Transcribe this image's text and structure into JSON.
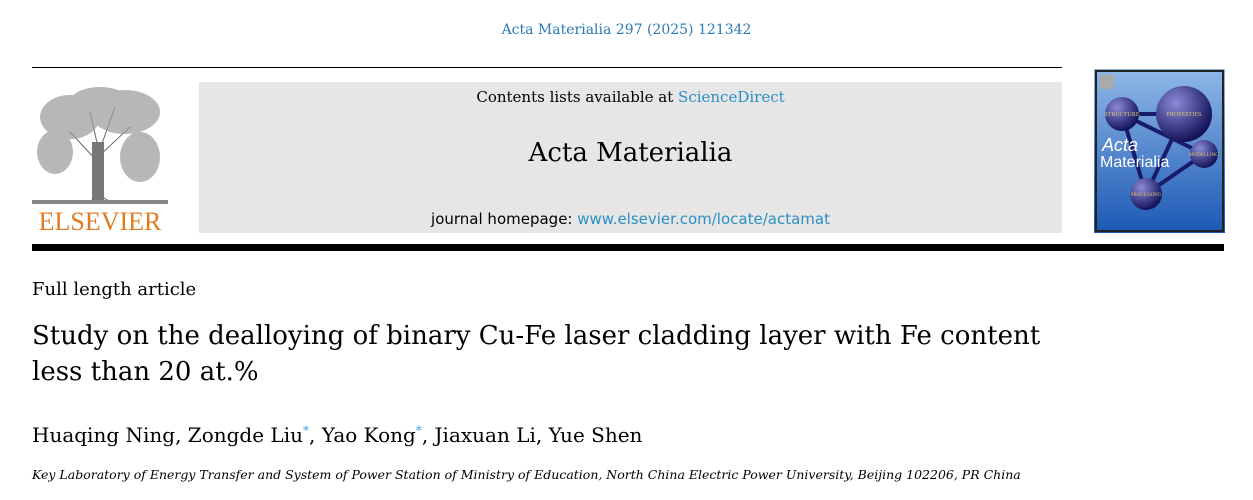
{
  "header": {
    "citation": "Acta Materialia 297 (2025) 121342",
    "contents_prefix": "Contents lists available at ",
    "contents_link": "ScienceDirect",
    "journal_title": "Acta Materialia",
    "homepage_prefix": "journal homepage: ",
    "homepage_link": "www.elsevier.com/locate/actamat",
    "publisher_logo_text": "ELSEVIER",
    "cover": {
      "title_line1": "Acta",
      "title_line2": "Materialia",
      "spheres": [
        "STRUCTURE",
        "PROPERTIES",
        "MODELLING",
        "PROCESSING"
      ],
      "background_color": "#2e6fc0"
    }
  },
  "article": {
    "type": "Full length article",
    "title": "Study on the dealloying of binary Cu-Fe laser cladding layer with Fe content less than 20 at.%",
    "authors": [
      {
        "name": "Huaqing Ning",
        "mark": ""
      },
      {
        "name": "Zongde Liu",
        "mark": "*"
      },
      {
        "name": "Yao Kong",
        "mark": "*"
      },
      {
        "name": "Jiaxuan Li",
        "mark": ""
      },
      {
        "name": "Yue Shen",
        "mark": ""
      }
    ],
    "affiliation": "Key Laboratory of Energy Transfer and System of Power Station of Ministry of Education, North China Electric Power University, Beijing 102206, PR China"
  },
  "colors": {
    "link": "#2a8fc4",
    "elsevier_orange": "#e07b22",
    "banner_bg": "#e6e6e6"
  }
}
